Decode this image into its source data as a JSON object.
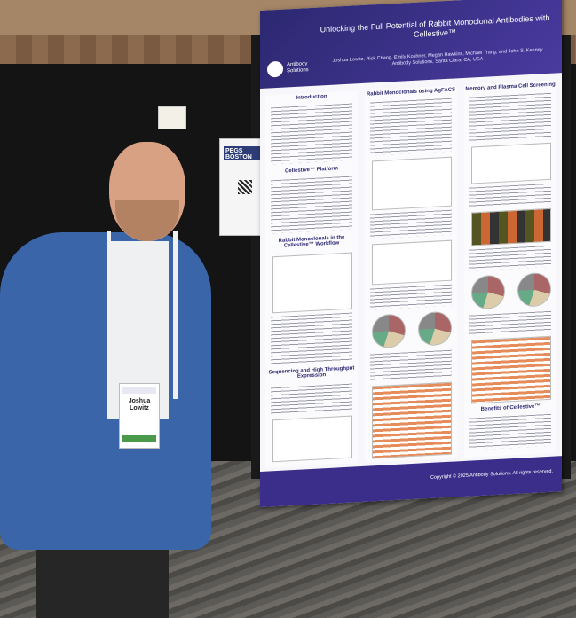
{
  "poster": {
    "title": "Unlocking the Full Potential of Rabbit Monoclonal Antibodies with Cellestive™",
    "authors": "Joshua Lowitz, Rick Chang, Emily Koshner, Megan Hawkins, Michael Trang, and John S. Kenney",
    "affiliation": "Antibody Solutions, Santa Clara, CA, USA",
    "logo_text": "Antibody Solutions",
    "sections": {
      "introduction": "Introduction",
      "platform": "Cellestive™ Platform",
      "workflow": "Rabbit Monoclonals in the Cellestive™ Workflow",
      "sequencing": "Sequencing and High Throughput Expression",
      "agfacs": "Rabbit Monoclonals using AgFACS",
      "memory": "Memory and Plasma Cell Screening",
      "benefits": "Benefits of Cellestive™"
    },
    "copyright": "Copyright © 2025 Antibody Solutions. All rights reserved."
  },
  "flyer": {
    "label": "PEGS BOSTON"
  },
  "badge": {
    "first_name": "Joshua",
    "last_name": "Lowitz"
  },
  "colors": {
    "poster_header": "#2c2870",
    "jacket": "#3a65a8"
  }
}
